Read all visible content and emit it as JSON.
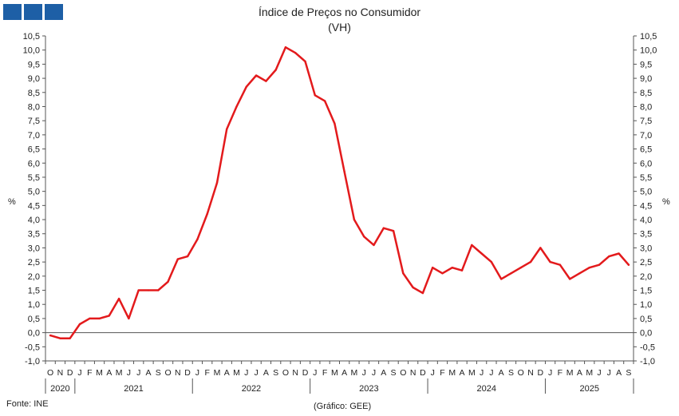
{
  "header": {
    "title": "Índice de Preços no Consumidor",
    "subtitle": "(VH)"
  },
  "footer": {
    "source": "Fonte: INE",
    "credit": "(Gráfico: GEE)"
  },
  "colors": {
    "line": "#e31a1c",
    "logo": "#1d5fa6",
    "axis": "#555555"
  },
  "chart_data": {
    "type": "line",
    "title": "Índice de Preços no Consumidor",
    "subtitle": "(VH)",
    "ylabel_left": "%",
    "ylabel_right": "%",
    "ylim": [
      -1.0,
      10.5
    ],
    "ytick_step": 0.5,
    "ytick_labels": [
      "10,5",
      "10,0",
      "9,5",
      "9,0",
      "8,5",
      "8,0",
      "7,5",
      "7,0",
      "6,5",
      "6,0",
      "5,5",
      "5,0",
      "4,5",
      "4,0",
      "3,5",
      "3,0",
      "2,5",
      "2,0",
      "1,5",
      "1,0",
      "0,5",
      "0,0",
      "-0,5",
      "-1,0"
    ],
    "grid": false,
    "x": [
      "2020-10",
      "2020-11",
      "2020-12",
      "2021-01",
      "2021-02",
      "2021-03",
      "2021-04",
      "2021-05",
      "2021-06",
      "2021-07",
      "2021-08",
      "2021-09",
      "2021-10",
      "2021-11",
      "2021-12",
      "2022-01",
      "2022-02",
      "2022-03",
      "2022-04",
      "2022-05",
      "2022-06",
      "2022-07",
      "2022-08",
      "2022-09",
      "2022-10",
      "2022-11",
      "2022-12",
      "2023-01",
      "2023-02",
      "2023-03",
      "2023-04",
      "2023-05",
      "2023-06",
      "2023-07",
      "2023-08",
      "2023-09",
      "2023-10",
      "2023-11",
      "2023-12",
      "2024-01",
      "2024-02",
      "2024-03",
      "2024-04",
      "2024-05",
      "2024-06",
      "2024-07",
      "2024-08",
      "2024-09",
      "2024-10",
      "2024-11",
      "2024-12",
      "2025-01",
      "2025-02",
      "2025-03",
      "2025-04",
      "2025-05",
      "2025-06",
      "2025-07",
      "2025-08",
      "2025-09"
    ],
    "month_labels": [
      "O",
      "N",
      "D",
      "J",
      "F",
      "M",
      "A",
      "M",
      "J",
      "J",
      "A",
      "S",
      "O",
      "N",
      "D",
      "J",
      "F",
      "M",
      "A",
      "M",
      "J",
      "J",
      "A",
      "S",
      "O",
      "N",
      "D",
      "J",
      "F",
      "M",
      "A",
      "M",
      "J",
      "J",
      "A",
      "S",
      "O",
      "N",
      "D",
      "J",
      "F",
      "M",
      "A",
      "M",
      "J",
      "J",
      "A",
      "S",
      "O",
      "N",
      "D",
      "J",
      "F",
      "M",
      "A",
      "M",
      "J",
      "J",
      "A",
      "S"
    ],
    "years": [
      {
        "label": "2020",
        "start": 0,
        "count": 3
      },
      {
        "label": "2021",
        "start": 3,
        "count": 12
      },
      {
        "label": "2022",
        "start": 15,
        "count": 12
      },
      {
        "label": "2023",
        "start": 27,
        "count": 12
      },
      {
        "label": "2024",
        "start": 39,
        "count": 12
      },
      {
        "label": "2025",
        "start": 51,
        "count": 9
      }
    ],
    "series": [
      {
        "values": [
          -0.1,
          -0.2,
          -0.2,
          0.3,
          0.5,
          0.5,
          0.6,
          1.2,
          0.5,
          1.5,
          1.5,
          1.5,
          1.8,
          2.6,
          2.7,
          3.3,
          4.2,
          5.3,
          7.2,
          8.0,
          8.7,
          9.1,
          8.9,
          9.3,
          10.1,
          9.9,
          9.6,
          8.4,
          8.2,
          7.4,
          5.7,
          4.0,
          3.4,
          3.1,
          3.7,
          3.6,
          2.1,
          1.6,
          1.4,
          2.3,
          2.1,
          2.3,
          2.2,
          3.1,
          2.8,
          2.5,
          1.9,
          2.1,
          2.3,
          2.5,
          3.0,
          2.5,
          2.4,
          1.9,
          2.1,
          2.3,
          2.4,
          2.7,
          2.8,
          2.4
        ]
      }
    ]
  }
}
